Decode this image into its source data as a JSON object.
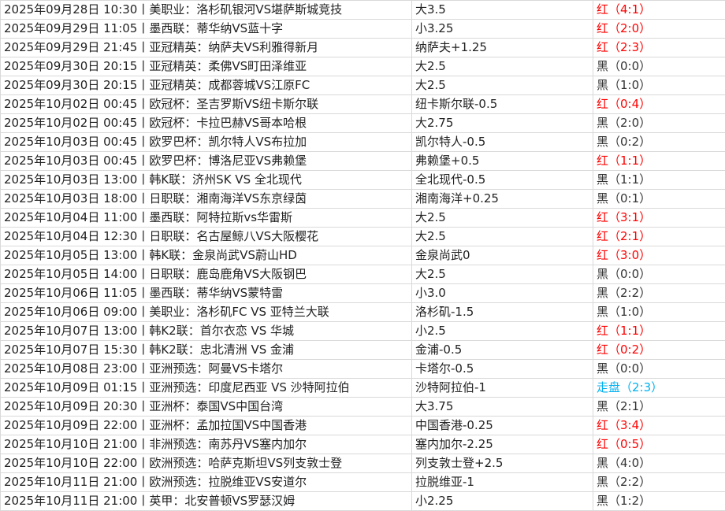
{
  "colors": {
    "red": "#ff0000",
    "black": "#333333",
    "push": "#00b0f0"
  },
  "rows": [
    {
      "match": "2025年09月28日 10:30丨美职业：洛杉矶银河VS堪萨斯城竞技",
      "pick": "大3.5",
      "result": "红（4:1）",
      "status": "red"
    },
    {
      "match": "2025年09月29日 11:05丨墨西联：蒂华纳VS蓝十字",
      "pick": "小3.25",
      "result": "红（2:0）",
      "status": "red"
    },
    {
      "match": "2025年09月29日 21:45丨亚冠精英：纳萨夫VS利雅得新月",
      "pick": "纳萨夫+1.25",
      "result": "红（2:3）",
      "status": "red"
    },
    {
      "match": "2025年09月30日 20:15丨亚冠精英：柔佛VS町田泽维亚",
      "pick": "大2.5",
      "result": "黑（0:0）",
      "status": "black"
    },
    {
      "match": "2025年09月30日 20:15丨亚冠精英：成都蓉城VS江原FC",
      "pick": "大2.5",
      "result": "黑（1:0）",
      "status": "black"
    },
    {
      "match": "2025年10月02日 00:45丨欧冠杯：圣吉罗斯VS纽卡斯尔联",
      "pick": "纽卡斯尔联-0.5",
      "result": "红（0:4）",
      "status": "red"
    },
    {
      "match": "2025年10月02日 00:45丨欧冠杯：卡拉巴赫VS哥本哈根",
      "pick": "大2.75",
      "result": "黑（2:0）",
      "status": "black"
    },
    {
      "match": "2025年10月03日 00:45丨欧罗巴杯：凯尔特人VS布拉加",
      "pick": "凯尔特人-0.5",
      "result": "黑（0:2）",
      "status": "black"
    },
    {
      "match": "2025年10月03日 00:45丨欧罗巴杯：博洛尼亚VS弗赖堡",
      "pick": "弗赖堡+0.5",
      "result": "红（1:1）",
      "status": "red"
    },
    {
      "match": "2025年10月03日 13:00丨韩K联：济州SK VS 全北现代",
      "pick": "全北现代-0.5",
      "result": "黑（1:1）",
      "status": "black"
    },
    {
      "match": "2025年10月03日 18:00丨日职联：湘南海洋VS东京绿茵",
      "pick": "湘南海洋+0.25",
      "result": "黑（0:1）",
      "status": "black"
    },
    {
      "match": "2025年10月04日 11:00丨墨西联：阿特拉斯vs华雷斯",
      "pick": "大2.5",
      "result": "红（3:1）",
      "status": "red"
    },
    {
      "match": "2025年10月04日 12:30丨日职联：名古屋鲸八VS大阪樱花",
      "pick": "大2.5",
      "result": "红（2:1）",
      "status": "red"
    },
    {
      "match": "2025年10月05日 13:00丨韩K联：金泉尚武VS蔚山HD",
      "pick": "金泉尚武0",
      "result": "红（3:0）",
      "status": "red"
    },
    {
      "match": "2025年10月05日 14:00丨日职联：鹿岛鹿角VS大阪钢巴",
      "pick": "大2.5",
      "result": "黑（0:0）",
      "status": "black"
    },
    {
      "match": "2025年10月06日 11:05丨墨西联：蒂华纳VS蒙特雷",
      "pick": "小3.0",
      "result": "黑（2:2）",
      "status": "black"
    },
    {
      "match": "2025年10月06日 09:00丨美职业：洛杉矶FC VS 亚特兰大联",
      "pick": "洛杉矶-1.5",
      "result": "黑（1:0）",
      "status": "black"
    },
    {
      "match": "2025年10月07日 13:00丨韩K2联：首尔衣恋 VS 华城",
      "pick": "小2.5",
      "result": "红（1:1）",
      "status": "red"
    },
    {
      "match": "2025年10月07日 15:30丨韩K2联：忠北清洲 VS 金浦",
      "pick": "金浦-0.5",
      "result": "红（0:2）",
      "status": "red"
    },
    {
      "match": "2025年10月08日 23:00丨亚洲预选：阿曼VS卡塔尔",
      "pick": "卡塔尔-0.5",
      "result": "黑（0:0）",
      "status": "black"
    },
    {
      "match": "2025年10月09日 01:15丨亚洲预选：印度尼西亚 VS 沙特阿拉伯",
      "pick": "沙特阿拉伯-1",
      "result": "走盘（2:3）",
      "status": "push"
    },
    {
      "match": "2025年10月09日 20:30丨亚洲杯：泰国VS中国台湾",
      "pick": "大3.75",
      "result": "黑（2:1）",
      "status": "black"
    },
    {
      "match": "2025年10月09日 22:00丨亚洲杯：孟加拉国VS中国香港",
      "pick": "中国香港-0.25",
      "result": "红（3:4）",
      "status": "red"
    },
    {
      "match": "2025年10月10日 21:00丨非洲预选：南苏丹VS塞内加尔",
      "pick": "塞内加尔-2.25",
      "result": "红（0:5）",
      "status": "red"
    },
    {
      "match": "2025年10月10日 22:00丨欧洲预选：哈萨克斯坦VS列支敦士登",
      "pick": "列支敦士登+2.5",
      "result": "黑（4:0）",
      "status": "black"
    },
    {
      "match": "2025年10月11日 21:00丨欧洲预选：拉脱维亚VS安道尔",
      "pick": "拉脱维亚-1",
      "result": "黑（2:2）",
      "status": "black"
    },
    {
      "match": "2025年10月11日 21:00丨英甲：北安普顿VS罗瑟汉姆",
      "pick": "小2.25",
      "result": "黑（1:2）",
      "status": "black"
    }
  ]
}
